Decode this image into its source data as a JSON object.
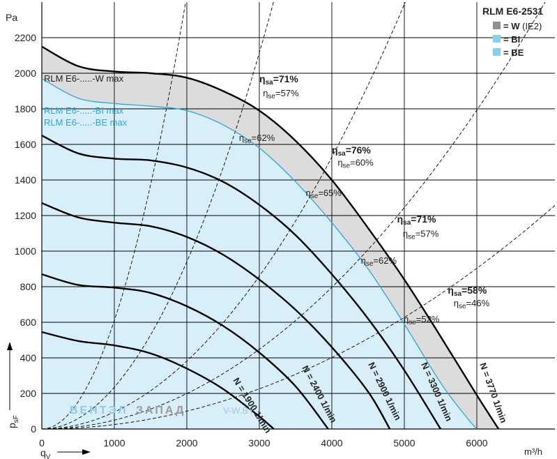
{
  "chart_data": {
    "type": "line",
    "title": "RLM E6-2531",
    "xlabel": "q",
    "xlabel_sub": "V",
    "xunit": "m³/h",
    "ylabel": "p",
    "ylabel_sub": "sF",
    "yunit": "Pa",
    "xlim": [
      0,
      6800
    ],
    "ylim": [
      0,
      2350
    ],
    "xticks": [
      "0",
      "1000",
      "2000",
      "3000",
      "4000",
      "5000",
      "6000"
    ],
    "yticks": [
      "0",
      "200",
      "400",
      "600",
      "800",
      "1000",
      "1200",
      "1400",
      "1600",
      "1800",
      "2000",
      "2200"
    ],
    "legend": [
      {
        "label": "= W",
        "note": "(IE2)",
        "color": "#8f8f8f"
      },
      {
        "label": "= BI",
        "color": "#87d0f0"
      },
      {
        "label": "= BE",
        "color": "#87d0f0"
      }
    ],
    "max_labels": [
      "RLM E6-.....-W max",
      "RLM E6-.....-BI max",
      "RLM E6-.....-BE max"
    ],
    "w_max": {
      "x": [
        0,
        500,
        1000,
        1500,
        2000,
        2500,
        3000,
        3500,
        4000,
        4500,
        5000,
        5500,
        6000,
        6300
      ],
      "y": [
        2150,
        2040,
        2010,
        2000,
        1975,
        1900,
        1790,
        1620,
        1400,
        1130,
        840,
        520,
        190,
        0
      ]
    },
    "b_max": {
      "x": [
        0,
        500,
        1000,
        1500,
        2000,
        2500,
        3000,
        3500,
        4000,
        4500,
        5000,
        5500,
        5850,
        6000
      ],
      "y": [
        1970,
        1860,
        1830,
        1815,
        1790,
        1710,
        1580,
        1390,
        1160,
        900,
        590,
        260,
        70,
        0
      ]
    },
    "series": [
      {
        "name": "N = 1900 1/min",
        "x": [
          0,
          500,
          1000,
          1500,
          2000,
          2500,
          3000,
          3200
        ],
        "y": [
          545,
          495,
          470,
          425,
          340,
          225,
          70,
          0
        ]
      },
      {
        "name": "N = 2400 1/min",
        "x": [
          0,
          500,
          1000,
          1500,
          2000,
          2500,
          3000,
          3500,
          3950
        ],
        "y": [
          870,
          810,
          795,
          765,
          690,
          580,
          430,
          240,
          0
        ]
      },
      {
        "name": "N = 2900 1/min",
        "x": [
          0,
          500,
          1000,
          1500,
          2000,
          2500,
          3000,
          3500,
          4000,
          4500,
          4800
        ],
        "y": [
          1270,
          1190,
          1160,
          1140,
          1080,
          980,
          840,
          670,
          460,
          210,
          0
        ]
      },
      {
        "name": "N = 3300 1/min",
        "x": [
          0,
          500,
          1000,
          1500,
          2000,
          2500,
          3000,
          3500,
          4000,
          4500,
          5000,
          5500
        ],
        "y": [
          1650,
          1550,
          1520,
          1510,
          1470,
          1390,
          1260,
          1090,
          870,
          620,
          330,
          0
        ]
      },
      {
        "name": "N = 3770 1/min",
        "x": [
          0,
          500,
          1000,
          1500,
          2000,
          2500,
          3000,
          3500,
          4000,
          4500,
          5000,
          5500,
          6000,
          6300
        ],
        "y": [
          2150,
          2040,
          2010,
          2000,
          1975,
          1900,
          1790,
          1620,
          1400,
          1130,
          840,
          520,
          190,
          0
        ]
      }
    ],
    "rpm_labels": [
      "N = 1900 1/min",
      "N = 2400 1/min",
      "N = 2900 1/min",
      "N = 3300 1/min",
      "N = 3770 1/min"
    ],
    "system_curves": [
      {
        "k": 0.00061
      },
      {
        "k": 0.000235
      },
      {
        "k": 9.55e-05
      },
      {
        "k": 4.98e-05
      },
      {
        "k": 2.51e-05
      }
    ],
    "eta_sa_labels": [
      {
        "text": "ηsa=71%",
        "x": 3000,
        "y": 1950
      },
      {
        "text": "ηsa=76%",
        "x": 4000,
        "y": 1550
      },
      {
        "text": "ηsa=71%",
        "x": 4900,
        "y": 1160
      },
      {
        "text": "ηsa=58%",
        "x": 5600,
        "y": 760
      }
    ],
    "eta_se_labels": [
      {
        "text": "ηse=57%",
        "x": 3050,
        "y": 1870,
        "color": "black"
      },
      {
        "text": "ηse=60%",
        "x": 4080,
        "y": 1480,
        "color": "black"
      },
      {
        "text": "ηse=57%",
        "x": 4980,
        "y": 1080,
        "color": "black"
      },
      {
        "text": "ηse=46%",
        "x": 5680,
        "y": 690,
        "color": "black"
      },
      {
        "text": "ηse=62%",
        "x": 2720,
        "y": 1620,
        "color": "blue"
      },
      {
        "text": "ηse=65%",
        "x": 3640,
        "y": 1310,
        "color": "blue"
      },
      {
        "text": "ηse=62%",
        "x": 4400,
        "y": 930,
        "color": "blue"
      },
      {
        "text": "ηse=52%",
        "x": 4990,
        "y": 600,
        "color": "blue"
      }
    ]
  },
  "watermark": {
    "part1": "ВЕНТЭЛ",
    "part2": "ЗАПАД",
    "part3": "V-W.BY"
  },
  "colors": {
    "gray_band": "#dcdcdc",
    "blue_fill": "#d8eff9",
    "blue_line": "#2aa6d8",
    "legend_gray": "#8f8f8f",
    "legend_blue": "#87d0f0"
  }
}
